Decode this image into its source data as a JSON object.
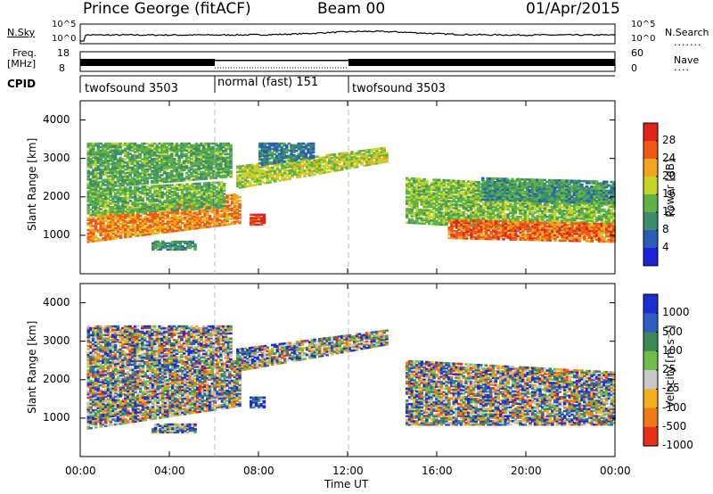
{
  "header": {
    "station": "Prince George (fitACF)",
    "beam": "Beam 00",
    "date": "01/Apr/2015"
  },
  "top_panels": {
    "nsky_label": "N.Sky",
    "nsky_ticks": [
      "10^5",
      "10^0"
    ],
    "nsearch_label": "N.Search",
    "nsearch_ticks": [
      "10^5",
      "10^0"
    ],
    "freq_label": "Freq.",
    "freq_unit": "[MHz]",
    "freq_ticks": [
      "18",
      "8"
    ],
    "nave_label": "Nave",
    "nave_ticks": [
      "60",
      "0"
    ],
    "cpid_label": "CPID",
    "cpid_segments": [
      {
        "label": "twofsound 3503",
        "start": 0,
        "end": 6
      },
      {
        "label": "normal (fast) 151",
        "start": 6,
        "end": 12
      },
      {
        "label": "twofsound 3503",
        "start": 12,
        "end": 24
      }
    ]
  },
  "x_axis": {
    "title": "Time UT",
    "ticks": [
      "00:00",
      "04:00",
      "08:00",
      "12:00",
      "16:00",
      "20:00",
      "00:00"
    ],
    "range_hours": [
      0,
      24
    ]
  },
  "chart_data": [
    {
      "type": "heatmap",
      "title": "",
      "xlabel": "Time UT",
      "ylabel": "Slant Range [km]",
      "xlim_hours": [
        0,
        24
      ],
      "ylim": [
        0,
        4500
      ],
      "yticks": [
        "1000",
        "2000",
        "3000",
        "4000"
      ],
      "colorbar": {
        "label": "Power [dB]",
        "ticks": [
          "4",
          "8",
          "12",
          "16",
          "20",
          "24",
          "28"
        ],
        "range": [
          0,
          30
        ],
        "colors": [
          "#1b22d8",
          "#2a5bb8",
          "#3d8d6f",
          "#5fb345",
          "#c6d42a",
          "#f2a51f",
          "#ee5a16",
          "#e0241a"
        ]
      },
      "regions": [
        {
          "t0": 0.3,
          "t1": 7.2,
          "r0": 800,
          "r1": 1500,
          "r_end0": 1300,
          "r_end1": 2100,
          "mean": 22
        },
        {
          "t0": 0.3,
          "t1": 6.5,
          "r0": 1500,
          "r1": 2200,
          "r_end0": 1700,
          "r_end1": 2400,
          "mean": 13
        },
        {
          "t0": 0.3,
          "t1": 6.8,
          "r0": 2200,
          "r1": 3400,
          "r_end0": 2500,
          "r_end1": 3400,
          "mean": 12
        },
        {
          "t0": 7.0,
          "t1": 13.8,
          "r0": 2200,
          "r1": 2800,
          "r_end0": 2900,
          "r_end1": 3300,
          "mean": 16
        },
        {
          "t0": 8.0,
          "t1": 10.5,
          "r0": 2800,
          "r1": 3400,
          "r_end0": 3000,
          "r_end1": 3400,
          "mean": 8
        },
        {
          "t0": 7.6,
          "t1": 8.3,
          "r0": 1250,
          "r1": 1550,
          "r_end0": 1250,
          "r_end1": 1550,
          "mean": 28
        },
        {
          "t0": 3.2,
          "t1": 5.2,
          "r0": 600,
          "r1": 850,
          "r_end0": 600,
          "r_end1": 850,
          "mean": 10
        },
        {
          "t0": 14.6,
          "t1": 24,
          "r0": 1300,
          "r1": 2500,
          "r_end0": 1000,
          "r_end1": 2200,
          "mean": 14
        },
        {
          "t0": 16.5,
          "t1": 24,
          "r0": 900,
          "r1": 1400,
          "r_end0": 800,
          "r_end1": 1300,
          "mean": 24
        },
        {
          "t0": 18.0,
          "t1": 24,
          "r0": 1900,
          "r1": 2500,
          "r_end0": 1800,
          "r_end1": 2400,
          "mean": 10
        }
      ]
    },
    {
      "type": "heatmap",
      "title": "",
      "xlabel": "Time UT",
      "ylabel": "Slant Range [km]",
      "xlim_hours": [
        0,
        24
      ],
      "ylim": [
        0,
        4500
      ],
      "yticks": [
        "1000",
        "2000",
        "3000",
        "4000"
      ],
      "colorbar": {
        "label": "Velocity [m s⁻¹]",
        "ticks": [
          "1000",
          "500",
          "100",
          "25",
          "-25",
          "-100",
          "-500",
          "-1000"
        ],
        "colors": [
          "#1b2fd0",
          "#2e5fc0",
          "#3c8a5a",
          "#6cc04a",
          "#c8c8c8",
          "#f2b020",
          "#ef7a18",
          "#e8301a"
        ]
      },
      "regions": [
        {
          "t0": 0.3,
          "t1": 7.2,
          "r0": 700,
          "r1": 2300,
          "r_end0": 1300,
          "r_end1": 2500,
          "mean": 4
        },
        {
          "t0": 0.3,
          "t1": 6.8,
          "r0": 2300,
          "r1": 3400,
          "r_end0": 2500,
          "r_end1": 3400,
          "mean": 4
        },
        {
          "t0": 7.0,
          "t1": 13.8,
          "r0": 2200,
          "r1": 2800,
          "r_end0": 2900,
          "r_end1": 3300,
          "mean": 4
        },
        {
          "t0": 7.6,
          "t1": 8.3,
          "r0": 1250,
          "r1": 1550,
          "r_end0": 1250,
          "r_end1": 1550,
          "mean": 7
        },
        {
          "t0": 3.2,
          "t1": 5.2,
          "r0": 600,
          "r1": 850,
          "r_end0": 600,
          "r_end1": 850,
          "mean": 5
        },
        {
          "t0": 14.6,
          "t1": 24,
          "r0": 800,
          "r1": 2500,
          "r_end0": 800,
          "r_end1": 2200,
          "mean": 4
        }
      ]
    }
  ]
}
